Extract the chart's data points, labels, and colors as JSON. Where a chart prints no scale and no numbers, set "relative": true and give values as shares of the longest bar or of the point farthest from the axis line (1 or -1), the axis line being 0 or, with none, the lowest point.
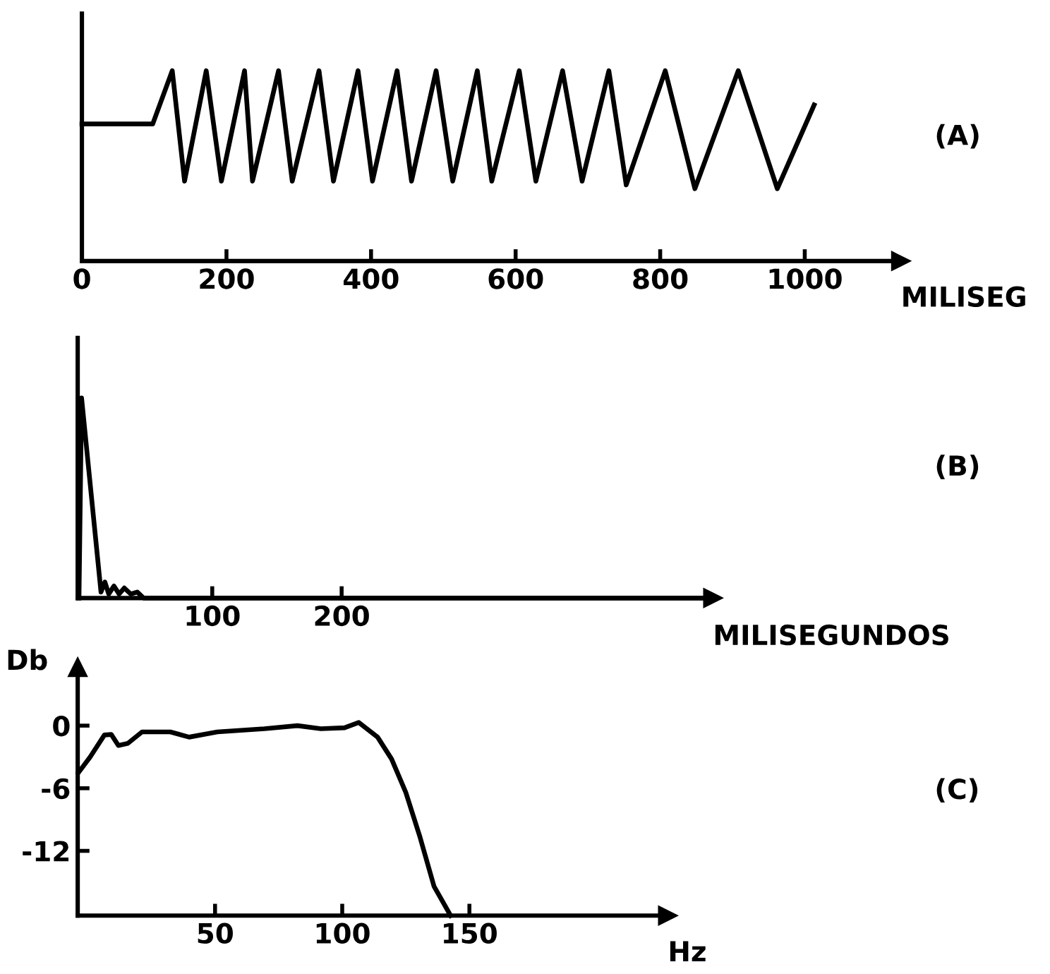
{
  "chart_data": [
    {
      "type": "line",
      "relative": true,
      "xlabel": "MILISEG",
      "annotations": [
        "(A)"
      ],
      "xlim": [
        0,
        1133
      ],
      "xticks": [
        0,
        200,
        400,
        600,
        800,
        1000
      ],
      "grid": false,
      "legend": false,
      "series": [
        {
          "color": "#000000",
          "x": [
            0,
            98,
            125,
            142,
            172,
            193,
            225,
            236,
            272,
            291,
            328,
            348,
            382,
            402,
            436,
            456,
            490,
            513,
            547,
            567,
            605,
            628,
            665,
            692,
            729,
            753,
            807,
            848,
            908,
            962,
            1013
          ],
          "values": [
            0.72,
            0.72,
            1,
            0.42,
            1,
            0.42,
            1,
            0.42,
            1,
            0.42,
            1,
            0.42,
            1,
            0.42,
            1,
            0.42,
            1,
            0.42,
            1,
            0.42,
            1,
            0.42,
            1,
            0.42,
            1,
            0.4,
            1,
            0.38,
            1,
            0.38,
            0.82
          ]
        }
      ]
    },
    {
      "type": "line",
      "relative": true,
      "xlabel": "MILISEGUNDOS",
      "annotations": [
        "(B)"
      ],
      "xlim": [
        -4,
        487
      ],
      "xticks": [
        100,
        200
      ],
      "grid": false,
      "legend": false,
      "series": [
        {
          "color": "#000000",
          "x": [
            -3,
            -1,
            14,
            17,
            20,
            24,
            28,
            32,
            37,
            42,
            47,
            487
          ],
          "values": [
            0,
            1,
            0.03,
            0.08,
            0.02,
            0.06,
            0.02,
            0.05,
            0.02,
            0.03,
            0,
            0
          ]
        }
      ]
    },
    {
      "type": "line",
      "xlabel": "Hz",
      "ylabel": "Db",
      "annotations": [
        "(C)"
      ],
      "xlim": [
        -4,
        228
      ],
      "xticks": [
        50,
        100,
        150
      ],
      "ylim": [
        -18.2,
        5.6
      ],
      "yticks": [
        0,
        -6,
        -12
      ],
      "grid": false,
      "legend": false,
      "series": [
        {
          "color": "#000000",
          "x": [
            -3.7,
            0.9,
            6.5,
            9.2,
            12.0,
            15.7,
            21.3,
            32.4,
            39.8,
            50.9,
            69.4,
            82.4,
            91.6,
            100.9,
            106.5,
            113.9,
            119.4,
            125.0,
            130.6,
            136.1,
            142.6
          ],
          "values": [
            -4.5,
            -3.0,
            -0.9,
            -0.85,
            -1.9,
            -1.7,
            -0.6,
            -0.6,
            -1.1,
            -0.6,
            -0.3,
            0,
            -0.3,
            -0.2,
            0.3,
            -1.1,
            -3.2,
            -6.4,
            -10.7,
            -15.4,
            -18.2
          ]
        }
      ]
    }
  ]
}
